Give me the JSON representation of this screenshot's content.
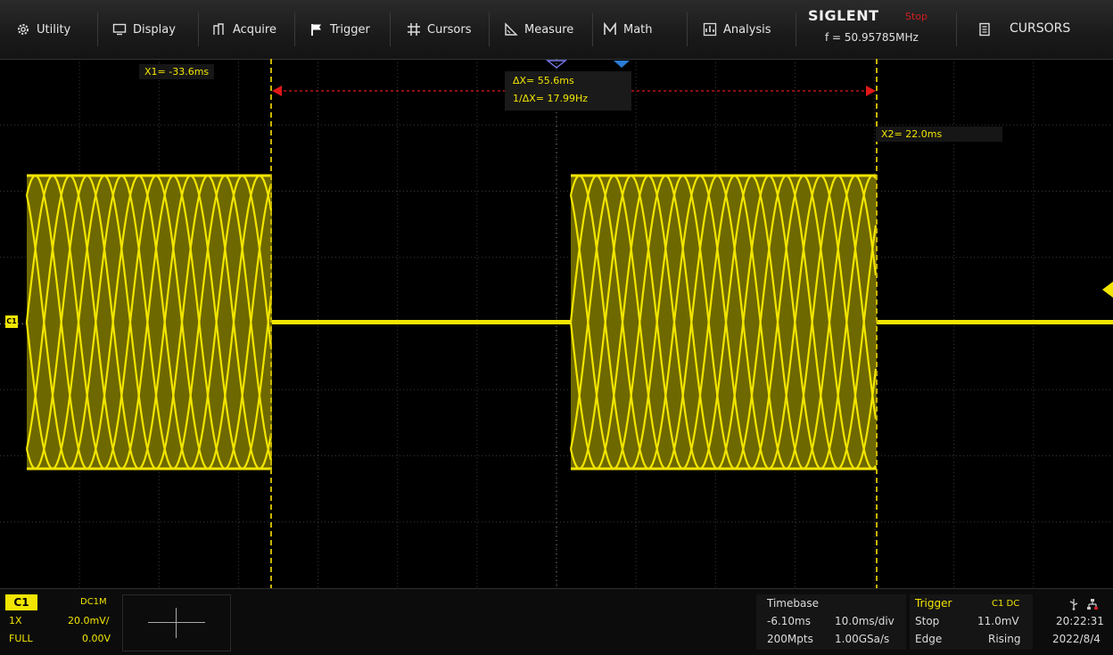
{
  "menu": {
    "items": [
      {
        "label": "Utility",
        "icon": "gear-icon"
      },
      {
        "label": "Display",
        "icon": "monitor-icon"
      },
      {
        "label": "Acquire",
        "icon": "acquire-icon"
      },
      {
        "label": "Trigger",
        "icon": "flag-icon"
      },
      {
        "label": "Cursors",
        "icon": "hash-icon"
      },
      {
        "label": "Measure",
        "icon": "ruler-icon"
      },
      {
        "label": "Math",
        "icon": "math-icon"
      },
      {
        "label": "Analysis",
        "icon": "analysis-icon"
      }
    ],
    "brand": "SIGLENT",
    "run_state": "Stop",
    "frequency": "f = 50.95785MHz",
    "right_menu": {
      "label": "CURSORS",
      "icon": "document-icon"
    }
  },
  "cursors": {
    "x1": "X1= -33.6ms",
    "x2": "X2= 22.0ms",
    "delta": "ΔX= 55.6ms",
    "inverse_delta": "1/ΔX= 17.99Hz"
  },
  "channel": {
    "marker": "C1",
    "trace_color": "#f2e500"
  },
  "status": {
    "channel_panel": {
      "name": "C1",
      "coupling": "DC1M",
      "probe": "1X",
      "volts_div": "20.0mV/",
      "bandwidth": "FULL",
      "offset": "0.00V"
    },
    "timebase": {
      "title": "Timebase",
      "delay": "-6.10ms",
      "time_div": "10.0ms/div",
      "memory": "200Mpts",
      "sample_rate": "1.00GSa/s"
    },
    "trigger": {
      "title": "Trigger",
      "source": "C1 DC",
      "state": "Stop",
      "level": "11.0mV",
      "type": "Edge",
      "slope": "Rising"
    },
    "clock": {
      "time": "20:22:31",
      "date": "2022/8/4"
    }
  },
  "colors": {
    "trace": "#f2e500",
    "cursor_line": "#c8b400",
    "delta_arrow": "#e01818",
    "stop": "#d21e1e"
  }
}
